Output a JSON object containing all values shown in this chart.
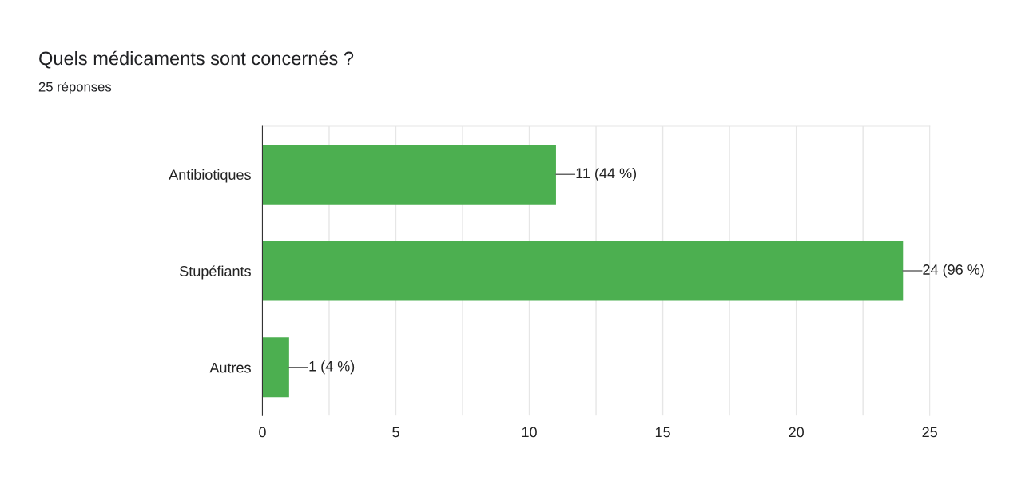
{
  "chart_data": {
    "type": "bar",
    "orientation": "horizontal",
    "title": "Quels médicaments sont concernés ?",
    "subtitle": "25 réponses",
    "categories": [
      "Antibiotiques",
      "Stupéfiants",
      "Autres"
    ],
    "values": [
      11,
      24,
      1
    ],
    "color": "#4caf50",
    "value_labels": [
      "11 (44 %)",
      "24 (96 %)",
      "1 (4 %)"
    ],
    "xlim": [
      0,
      25
    ],
    "xticks": [
      0,
      {
        "value": 2.5,
        "label": null
      },
      5,
      {
        "value": 7.5,
        "label": null
      },
      10,
      {
        "value": 12.5,
        "label": null
      },
      15,
      {
        "value": 17.5,
        "label": null
      },
      20,
      {
        "value": 22.5,
        "label": null
      },
      25
    ],
    "grid": "x",
    "legend": false
  }
}
